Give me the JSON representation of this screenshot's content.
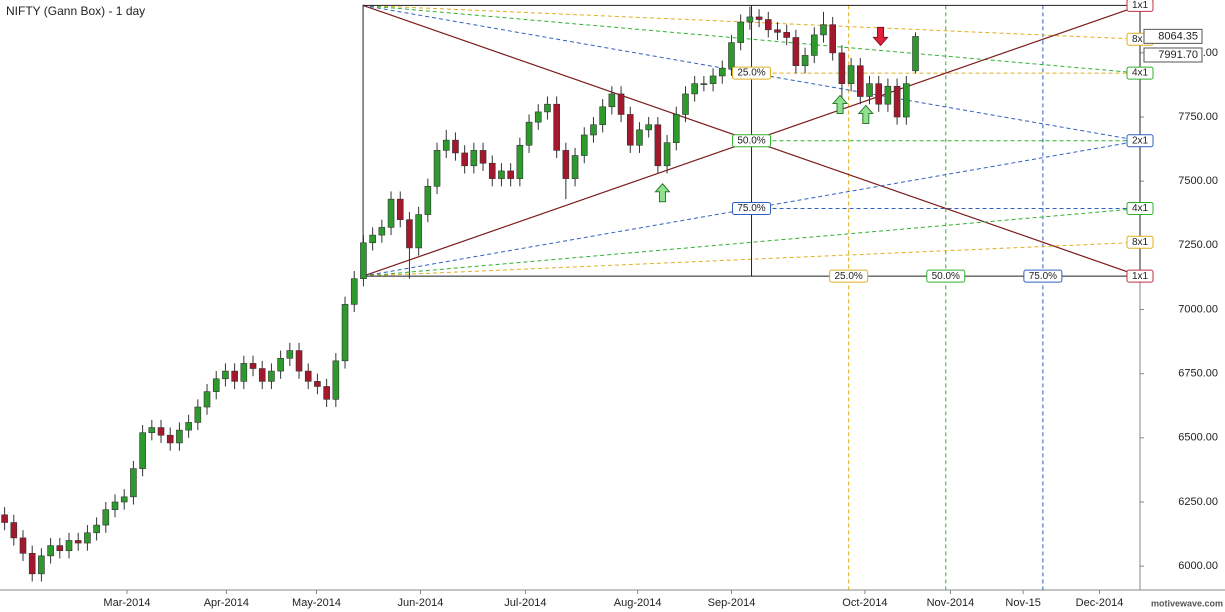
{
  "chart_data": {
    "type": "candlestick",
    "title": "NIFTY (Gann Box) - 1 day",
    "watermark": "motivewave.com",
    "xlim": [
      -0.5,
      123.4
    ],
    "ylim": [
      5907,
      8206
    ],
    "xticks": [
      {
        "value": 13.3,
        "label": "Mar-2014"
      },
      {
        "value": 24.1,
        "label": "Apr-2014"
      },
      {
        "value": 33.9,
        "label": "May-2014"
      },
      {
        "value": 45.2,
        "label": "Jun-2014"
      },
      {
        "value": 56.6,
        "label": "Jul-2014"
      },
      {
        "value": 68.8,
        "label": "Aug-2014"
      },
      {
        "value": 79.0,
        "label": "Sep-2014"
      },
      {
        "value": 93.5,
        "label": "Oct-2014"
      },
      {
        "value": 102.8,
        "label": "Nov-2014"
      },
      {
        "value": 110.7,
        "label": "Nov-15"
      },
      {
        "value": 119.0,
        "label": "Dec-2014"
      }
    ],
    "yticks": [
      {
        "value": 6000,
        "label": "6000.00"
      },
      {
        "value": 6250,
        "label": "6250.00"
      },
      {
        "value": 6500,
        "label": "6500.00"
      },
      {
        "value": 6750,
        "label": "6750.00"
      },
      {
        "value": 7000,
        "label": "7000.00"
      },
      {
        "value": 7250,
        "label": "7250.00"
      },
      {
        "value": 7500,
        "label": "7500.00"
      },
      {
        "value": 7750,
        "label": "7750.00"
      },
      {
        "value": 8000,
        "label": "8000.00"
      }
    ],
    "price_labels": [
      8064.35,
      {
        "value": 7991.7,
        "label": "7991.70"
      }
    ],
    "series": [
      {
        "up_color": "#2e9a2e",
        "down_color": "#a3182c",
        "x": [
          0,
          1,
          2,
          3,
          4,
          5,
          6,
          7,
          8,
          9,
          10,
          11,
          12,
          13,
          14,
          15,
          16,
          17,
          18,
          19,
          20,
          21,
          22,
          23,
          24,
          25,
          26,
          27,
          28,
          29,
          30,
          31,
          32,
          33,
          34,
          35,
          36,
          37,
          38,
          39,
          40,
          41,
          42,
          43,
          44,
          45,
          46,
          47,
          48,
          49,
          50,
          51,
          52,
          53,
          54,
          55,
          56,
          57,
          58,
          59,
          60,
          61,
          62,
          63,
          64,
          65,
          66,
          67,
          68,
          69,
          70,
          71,
          72,
          73,
          74,
          75,
          76,
          77,
          78,
          79,
          80,
          81,
          82,
          83,
          84,
          85,
          86,
          87,
          88,
          89,
          90,
          91,
          92,
          93,
          94,
          95,
          96,
          97,
          98,
          99
        ],
        "open": [
          6200,
          6170,
          6110,
          6050,
          5970,
          6040,
          6080,
          6060,
          6100,
          6090,
          6130,
          6160,
          6220,
          6250,
          6270,
          6380,
          6520,
          6540,
          6510,
          6480,
          6530,
          6560,
          6620,
          6680,
          6730,
          6760,
          6720,
          6790,
          6770,
          6720,
          6760,
          6810,
          6840,
          6760,
          6720,
          6700,
          6650,
          6800,
          7020,
          7120,
          7260,
          7290,
          7320,
          7430,
          7350,
          7240,
          7370,
          7480,
          7620,
          7660,
          7610,
          7560,
          7620,
          7570,
          7510,
          7540,
          7510,
          7640,
          7730,
          7770,
          7800,
          7620,
          7510,
          7600,
          7680,
          7720,
          7790,
          7840,
          7760,
          7640,
          7700,
          7720,
          7560,
          7650,
          7760,
          7840,
          7880,
          7880,
          7910,
          7940,
          8040,
          8120,
          8140,
          8130,
          8090,
          8080,
          8060,
          7950,
          7990,
          8070,
          8110,
          8000,
          7880,
          7950,
          7830,
          7880,
          7800,
          7870,
          7750,
          7930
        ],
        "high": [
          6230,
          6200,
          6140,
          6080,
          6070,
          6110,
          6110,
          6130,
          6130,
          6160,
          6190,
          6250,
          6280,
          6300,
          6410,
          6550,
          6570,
          6570,
          6540,
          6560,
          6590,
          6650,
          6710,
          6760,
          6790,
          6790,
          6820,
          6820,
          6800,
          6790,
          6840,
          6870,
          6870,
          6790,
          6750,
          6730,
          6830,
          7050,
          7150,
          7290,
          7320,
          7350,
          7460,
          7460,
          7380,
          7400,
          7510,
          7650,
          7700,
          7690,
          7640,
          7650,
          7650,
          7600,
          7570,
          7570,
          7670,
          7760,
          7800,
          7830,
          7830,
          7650,
          7630,
          7710,
          7750,
          7820,
          7870,
          7870,
          7790,
          7730,
          7750,
          7750,
          7680,
          7790,
          7870,
          7910,
          7910,
          7940,
          7970,
          8070,
          8150,
          8180,
          8170,
          8160,
          8120,
          8110,
          8090,
          8020,
          8100,
          8160,
          8140,
          8030,
          7980,
          7980,
          7910,
          7910,
          7900,
          7900,
          7910,
          8080
        ],
        "low": [
          6140,
          6080,
          6020,
          5940,
          5940,
          6010,
          6030,
          6030,
          6060,
          6060,
          6100,
          6130,
          6190,
          6220,
          6240,
          6350,
          6490,
          6480,
          6450,
          6450,
          6500,
          6530,
          6590,
          6650,
          6700,
          6690,
          6690,
          6740,
          6690,
          6690,
          6730,
          6780,
          6730,
          6690,
          6670,
          6620,
          6620,
          6770,
          6990,
          7090,
          7230,
          7260,
          7290,
          7320,
          7120,
          7210,
          7340,
          7450,
          7590,
          7580,
          7530,
          7530,
          7540,
          7480,
          7480,
          7480,
          7480,
          7610,
          7700,
          7740,
          7590,
          7430,
          7480,
          7570,
          7650,
          7690,
          7760,
          7730,
          7610,
          7610,
          7670,
          7530,
          7530,
          7620,
          7730,
          7810,
          7850,
          7850,
          7880,
          7910,
          8010,
          8090,
          8100,
          8060,
          8050,
          8030,
          7920,
          7920,
          7960,
          8040,
          7970,
          7820,
          7850,
          7800,
          7800,
          7770,
          7770,
          7720,
          7720,
          7920
        ],
        "close": [
          6170,
          6110,
          6050,
          5970,
          6040,
          6080,
          6060,
          6100,
          6090,
          6130,
          6160,
          6220,
          6250,
          6270,
          6380,
          6520,
          6540,
          6510,
          6480,
          6530,
          6560,
          6620,
          6680,
          6730,
          6760,
          6720,
          6790,
          6770,
          6720,
          6760,
          6810,
          6840,
          6760,
          6720,
          6700,
          6650,
          6800,
          7020,
          7120,
          7260,
          7290,
          7320,
          7430,
          7350,
          7240,
          7370,
          7480,
          7620,
          7660,
          7610,
          7560,
          7620,
          7570,
          7510,
          7540,
          7510,
          7640,
          7730,
          7770,
          7800,
          7620,
          7510,
          7600,
          7680,
          7720,
          7790,
          7840,
          7760,
          7640,
          7700,
          7720,
          7560,
          7650,
          7760,
          7840,
          7880,
          7880,
          7910,
          7940,
          8040,
          8120,
          8140,
          8130,
          8090,
          8080,
          8060,
          7950,
          7990,
          8070,
          8110,
          8000,
          7880,
          7950,
          7830,
          7880,
          7800,
          7870,
          7750,
          7880,
          8064
        ]
      }
    ],
    "gann_box": {
      "x_start": 38.96,
      "x_end": 123.4,
      "low": 7130,
      "high": 8185,
      "line_color": "#7a1a1a",
      "fans": [
        {
          "origin": "top",
          "level": 12.5,
          "color": "#e0b020"
        },
        {
          "origin": "top",
          "level": 25,
          "color": "#30b030"
        },
        {
          "origin": "top",
          "level": 50,
          "color": "#3060c0"
        },
        {
          "origin": "top",
          "level": 100,
          "color": "#7a1a1a"
        },
        {
          "origin": "bottom",
          "level": 0,
          "color": "#7a1a1a"
        },
        {
          "origin": "bottom",
          "level": 50,
          "color": "#3060c0"
        },
        {
          "origin": "bottom",
          "level": 75,
          "color": "#30b030"
        },
        {
          "origin": "bottom",
          "level": 87.5,
          "color": "#e0b020"
        }
      ],
      "fan_labels": [
        {
          "label": "1x1",
          "level": 0,
          "color": "#c03040"
        },
        {
          "label": "8x1",
          "level": 12.5,
          "color": "#e0b020"
        },
        {
          "label": "4x1",
          "level": 25,
          "color": "#30b030"
        },
        {
          "label": "2x1",
          "level": 50,
          "color": "#3060c0"
        },
        {
          "label": "4x1",
          "level": 75,
          "color": "#30b030"
        },
        {
          "label": "8x1",
          "level": 87.5,
          "color": "#e0b020"
        },
        {
          "label": "1x1",
          "level": 100,
          "color": "#c03040"
        }
      ],
      "price_levels": [
        {
          "value": 25,
          "label": "25.0%",
          "color": "#e0b020"
        },
        {
          "value": 50,
          "label": "50.0%",
          "color": "#30b030"
        },
        {
          "value": 75,
          "label": "75.0%",
          "color": "#3060c0"
        }
      ],
      "time_levels": [
        {
          "value": 25,
          "label": "25.0%",
          "color": "#e0b020"
        },
        {
          "value": 50,
          "label": "50.0%",
          "color": "#30b030"
        },
        {
          "value": 75,
          "label": "75.0%",
          "color": "#3060c0"
        }
      ]
    },
    "arrows": [
      {
        "x": 71.5,
        "price": 7490,
        "direction": "up"
      },
      {
        "x": 90.8,
        "price": 7834,
        "direction": "up"
      },
      {
        "x": 93.6,
        "price": 7795,
        "direction": "up"
      },
      {
        "x": 95.2,
        "price": 8029,
        "direction": "down"
      }
    ]
  }
}
